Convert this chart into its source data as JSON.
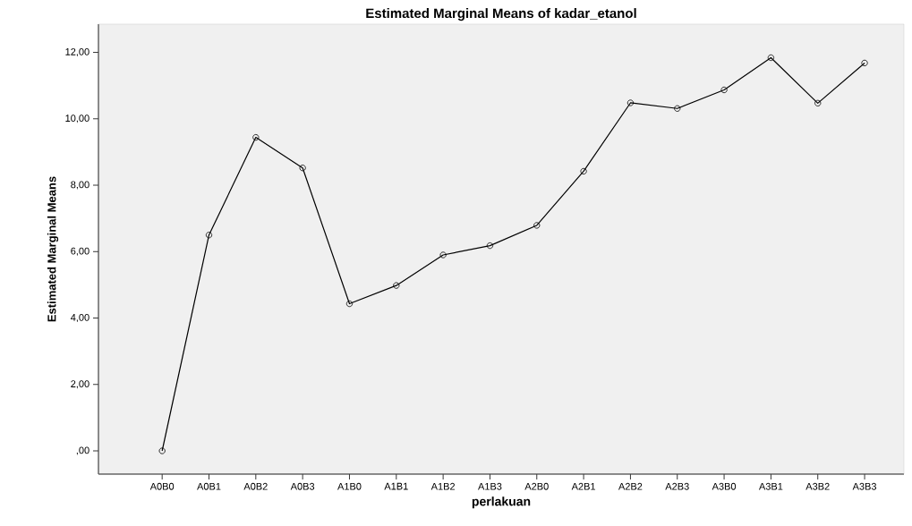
{
  "chart_data": {
    "type": "line",
    "title": "Estimated Marginal Means of kadar_etanol",
    "xlabel": "perlakuan",
    "ylabel": "Estimated Marginal Means",
    "categories": [
      "A0B0",
      "A0B1",
      "A0B2",
      "A0B3",
      "A1B0",
      "A1B1",
      "A1B2",
      "A1B3",
      "A2B0",
      "A2B1",
      "A2B2",
      "A2B3",
      "A3B0",
      "A3B1",
      "A3B2",
      "A3B3"
    ],
    "series": [
      {
        "color": "#000000",
        "values": [
          0.0,
          6.5,
          9.44,
          8.52,
          4.43,
          4.98,
          5.9,
          6.18,
          6.79,
          8.42,
          10.48,
          10.31,
          10.87,
          11.84,
          10.47,
          11.68
        ]
      }
    ],
    "ylim": [
      -0.7,
      12.85
    ],
    "yticks": [
      {
        "value": 0,
        "label": ",00"
      },
      {
        "value": 2,
        "label": "2,00"
      },
      {
        "value": 4,
        "label": "4,00"
      },
      {
        "value": 6,
        "label": "6,00"
      },
      {
        "value": 8,
        "label": "8,00"
      },
      {
        "value": 10,
        "label": "10,00"
      },
      {
        "value": 12,
        "label": "12,00"
      }
    ],
    "marker": "circle",
    "line_style": "solid",
    "grid": false
  }
}
